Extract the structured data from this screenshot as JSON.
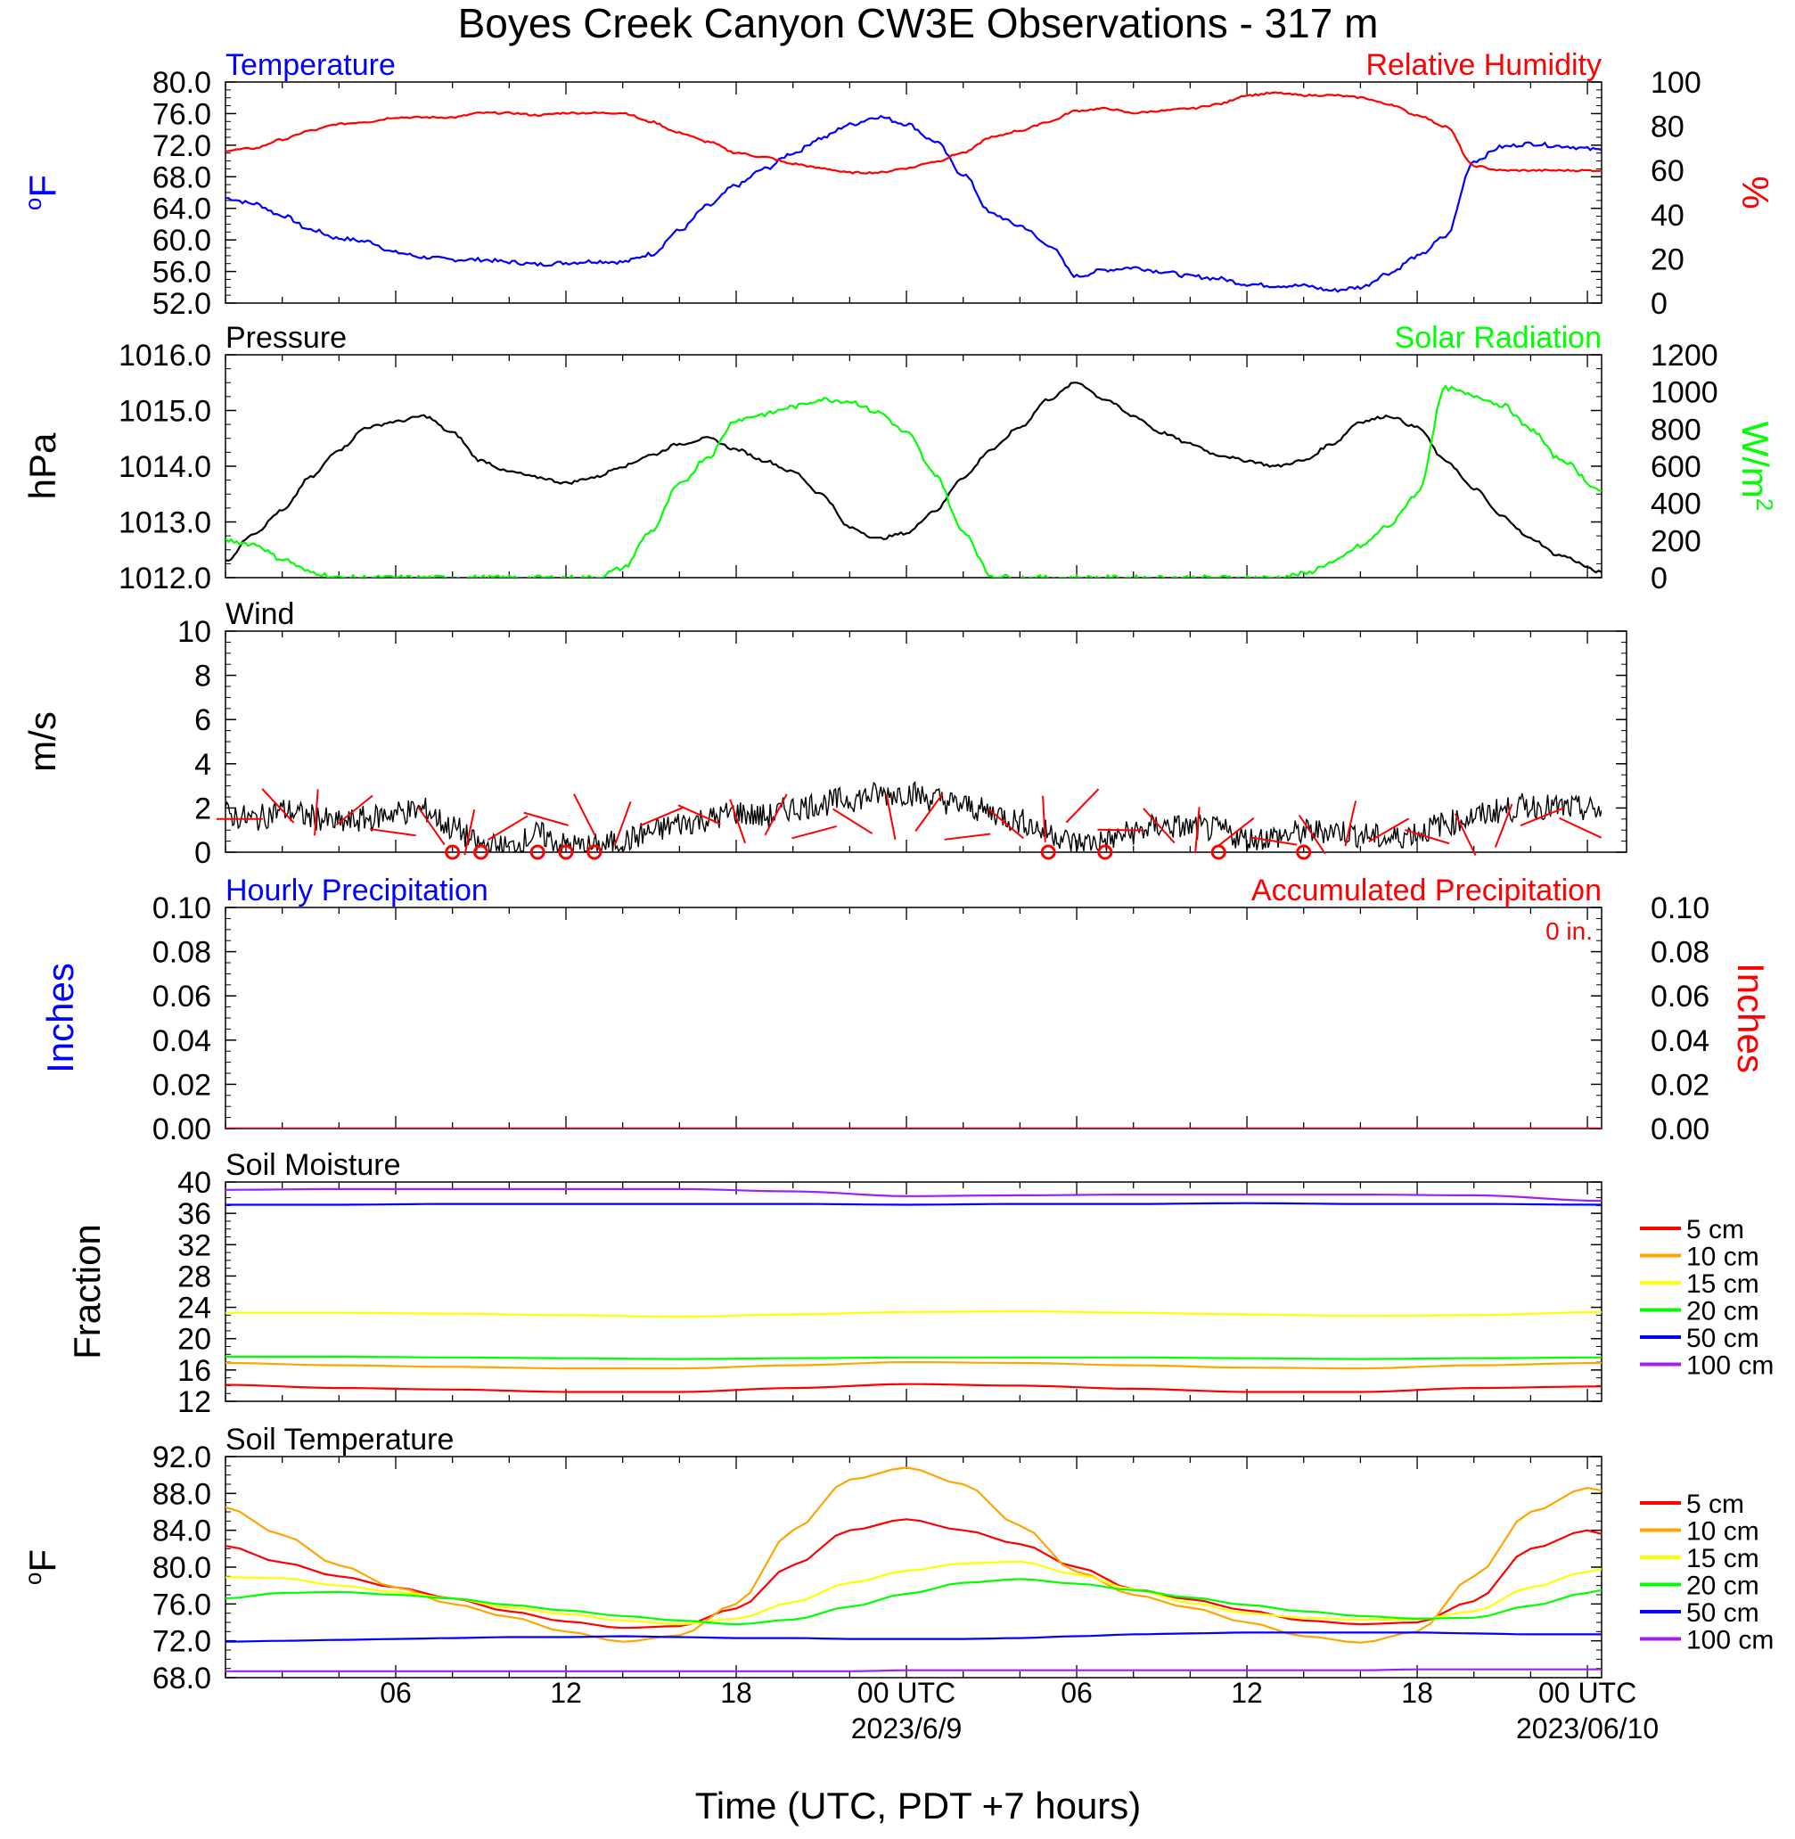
{
  "title": "Boyes Creek Canyon CW3E Observations - 317 m",
  "xaxis": {
    "title": "Time (UTC, PDT +7 hours)",
    "ticks": [
      {
        "h": 6,
        "label": "06"
      },
      {
        "h": 12,
        "label": "12"
      },
      {
        "h": 18,
        "label": "18"
      },
      {
        "h": 24,
        "label": "00 UTC",
        "sub": "2023/6/9"
      },
      {
        "h": 30,
        "label": "06"
      },
      {
        "h": 36,
        "label": "12"
      },
      {
        "h": 42,
        "label": "18"
      },
      {
        "h": 48,
        "label": "00 UTC",
        "sub": "2023/06/10"
      }
    ]
  },
  "legend": {
    "items": [
      {
        "label": "5 cm",
        "color": "#ff0000"
      },
      {
        "label": "10 cm",
        "color": "#ffa500"
      },
      {
        "label": "15 cm",
        "color": "#ffff00"
      },
      {
        "label": "20 cm",
        "color": "#00ff00"
      },
      {
        "label": "50 cm",
        "color": "#0000ff"
      },
      {
        "label": "100 cm",
        "color": "#a020f0"
      }
    ]
  },
  "chart_data": [
    {
      "id": "temp_rh",
      "type": "line",
      "left_title": "Temperature",
      "left_title_color": "#0000ff",
      "right_title": "Relative Humidity",
      "right_title_color": "#ff0000",
      "ylabel_left": "oF",
      "ylabel_left_color": "#0000ff",
      "ylabel_right": "%",
      "ylabel_right_color": "#ff0000",
      "ylim": [
        52,
        80
      ],
      "yticks": [
        "52.0",
        "56.0",
        "60.0",
        "64.0",
        "68.0",
        "72.0",
        "76.0",
        "80.0"
      ],
      "ylim_right": [
        0,
        100
      ],
      "yticks_right": [
        "0",
        "20",
        "40",
        "60",
        "80",
        "100"
      ],
      "x_hours": [
        0,
        1,
        2,
        3,
        4,
        5,
        6,
        7,
        8,
        9,
        10,
        11,
        12,
        13,
        14,
        15,
        16,
        17,
        18,
        19,
        20,
        21,
        22,
        23,
        24,
        25,
        26,
        27,
        28,
        29,
        30,
        31,
        32,
        33,
        34,
        35,
        36,
        37,
        38,
        39,
        40,
        41,
        42,
        43,
        44,
        45,
        46,
        47,
        48.5
      ],
      "series": [
        {
          "axis": "left",
          "color": "#0000ff",
          "values": [
            65.3,
            64.6,
            63.1,
            61.3,
            60.2,
            59.8,
            58.4,
            57.8,
            57.5,
            57.5,
            57.2,
            56.9,
            57.1,
            57.3,
            57.2,
            58.2,
            61.2,
            64.3,
            66.9,
            69.0,
            71.0,
            72.9,
            74.6,
            75.6,
            74.7,
            72.5,
            68.3,
            63.3,
            61.8,
            59.4,
            55.4,
            56.2,
            56.5,
            56.0,
            55.4,
            55.1,
            54.4,
            54.2,
            54.2,
            53.6,
            54.0,
            55.8,
            57.9,
            60.4,
            70.0,
            71.8,
            72.2,
            71.9,
            71.4
          ]
        },
        {
          "axis": "right",
          "color": "#ff0000",
          "values": [
            69,
            70,
            74,
            78,
            81,
            82,
            84,
            84,
            84,
            86,
            86,
            85,
            86,
            86,
            86,
            82,
            77,
            73,
            68,
            66,
            63,
            61,
            59,
            59,
            61,
            64,
            68,
            75,
            78,
            82,
            87,
            88,
            86,
            87,
            88,
            90,
            94,
            95,
            94,
            94,
            93,
            90,
            85,
            80,
            62,
            60,
            60,
            60,
            60
          ]
        }
      ]
    },
    {
      "id": "pres_solar",
      "type": "line",
      "left_title": "Pressure",
      "left_title_color": "#000000",
      "right_title": "Solar Radiation",
      "right_title_color": "#00ff00",
      "ylabel_left": "hPa",
      "ylabel_left_color": "#000000",
      "ylabel_right": "W/m2",
      "ylabel_right_color": "#00ff00",
      "ylim": [
        1012,
        1016
      ],
      "yticks": [
        "1012.0",
        "1013.0",
        "1014.0",
        "1015.0",
        "1016.0"
      ],
      "ylim_right": [
        0,
        1200
      ],
      "yticks_right": [
        "0",
        "200",
        "400",
        "600",
        "800",
        "1000",
        "1200"
      ],
      "x_hours": [
        0,
        1,
        2,
        3,
        4,
        5,
        6,
        7,
        8,
        9,
        10,
        11,
        12,
        13,
        14,
        15,
        16,
        17,
        18,
        19,
        20,
        21,
        22,
        23,
        24,
        25,
        26,
        27,
        28,
        29,
        30,
        31,
        32,
        33,
        34,
        35,
        36,
        37,
        38,
        39,
        40,
        41,
        42,
        43,
        44,
        45,
        46,
        47,
        48.5
      ],
      "series": [
        {
          "axis": "left",
          "color": "#000000",
          "values": [
            1012.3,
            1012.8,
            1013.2,
            1013.8,
            1014.3,
            1014.7,
            1014.8,
            1014.9,
            1014.6,
            1014.1,
            1013.9,
            1013.8,
            1013.7,
            1013.8,
            1014.0,
            1014.2,
            1014.4,
            1014.5,
            1014.3,
            1014.1,
            1013.9,
            1013.5,
            1012.9,
            1012.7,
            1012.8,
            1013.2,
            1013.8,
            1014.3,
            1014.7,
            1015.2,
            1015.5,
            1015.2,
            1014.9,
            1014.6,
            1014.4,
            1014.2,
            1014.1,
            1014.0,
            1014.1,
            1014.4,
            1014.8,
            1014.9,
            1014.7,
            1014.1,
            1013.6,
            1013.1,
            1012.7,
            1012.4,
            1012.1
          ]
        },
        {
          "axis": "right",
          "color": "#00ff00",
          "values": [
            200,
            180,
            100,
            30,
            0,
            0,
            0,
            0,
            0,
            0,
            0,
            0,
            0,
            0,
            50,
            250,
            500,
            650,
            850,
            880,
            920,
            960,
            950,
            890,
            780,
            560,
            250,
            10,
            0,
            0,
            0,
            0,
            0,
            0,
            0,
            0,
            0,
            0,
            20,
            80,
            170,
            280,
            450,
            1020,
            980,
            930,
            800,
            640,
            470
          ]
        }
      ]
    },
    {
      "id": "wind",
      "type": "line",
      "left_title": "Wind",
      "left_title_color": "#000000",
      "ylabel_left": "m/s",
      "ylabel_left_color": "#000000",
      "ylim": [
        0,
        10
      ],
      "yticks": [
        "0",
        "2",
        "4",
        "6",
        "8",
        "10"
      ],
      "x_hours": [
        0,
        1,
        2,
        3,
        4,
        5,
        6,
        7,
        8,
        9,
        10,
        11,
        12,
        13,
        14,
        15,
        16,
        17,
        18,
        19,
        20,
        21,
        22,
        23,
        24,
        25,
        26,
        27,
        28,
        29,
        30,
        31,
        32,
        33,
        34,
        35,
        36,
        37,
        38,
        39,
        40,
        41,
        42,
        43,
        44,
        45,
        46,
        47,
        48.5
      ],
      "series": [
        {
          "axis": "left",
          "color": "#000000",
          "values": [
            1.7,
            1.5,
            1.9,
            1.6,
            1.3,
            1.5,
            1.8,
            1.9,
            1.1,
            0.3,
            0.2,
            0.8,
            0.3,
            0.2,
            0.5,
            0.9,
            1.3,
            1.5,
            1.8,
            1.6,
            2.0,
            2.2,
            2.4,
            2.6,
            2.7,
            2.4,
            2.1,
            1.8,
            1.4,
            0.9,
            0.4,
            0.5,
            0.9,
            1.2,
            1.1,
            1.0,
            0.6,
            0.7,
            0.9,
            1.0,
            0.8,
            0.6,
            0.9,
            1.3,
            1.6,
            1.9,
            2.1,
            2.0,
            1.9
          ]
        },
        {
          "axis": "left",
          "color": "#ff0000",
          "name": "wind direction barbs",
          "values": [
            1.5,
            2.1,
            1.8,
            1.9,
            0.9,
            1.2,
            0.9,
            1.1,
            1.5,
            1.7,
            1.3,
            1.6,
            1.7,
            1.4,
            1.7,
            0.9,
            1.4,
            1.6,
            1.8,
            0.7,
            1.3,
            1.5,
            2.1,
            1.0,
            1.2,
            1.0,
            0.9,
            0.5,
            0.8,
            1.3,
            1.0,
            0.7,
            0.8,
            1.2,
            1.6,
            1.1
          ]
        }
      ],
      "calm_markers_hours": [
        8,
        9,
        11,
        12,
        13,
        29,
        31,
        35,
        38
      ]
    },
    {
      "id": "precip",
      "type": "line",
      "left_title": "Hourly Precipitation",
      "left_title_color": "#0000ff",
      "right_title": "Accumulated Precipitation",
      "right_title_color": "#ff0000",
      "annotation": "0 in.",
      "ylabel_left": "Inches",
      "ylabel_left_color": "#0000ff",
      "ylabel_right": "Inches",
      "ylabel_right_color": "#ff0000",
      "ylim": [
        0,
        0.1
      ],
      "yticks": [
        "0.00",
        "0.02",
        "0.04",
        "0.06",
        "0.08",
        "0.10"
      ],
      "ylim_right": [
        0,
        0.1
      ],
      "yticks_right": [
        "0.00",
        "0.02",
        "0.04",
        "0.06",
        "0.08",
        "0.10"
      ],
      "x_hours": [
        0,
        48.5
      ],
      "series": [
        {
          "axis": "left",
          "color": "#0000ff",
          "values": [
            0,
            0
          ]
        },
        {
          "axis": "right",
          "color": "#ff0000",
          "values": [
            0,
            0
          ]
        }
      ]
    },
    {
      "id": "soil_moist",
      "type": "line",
      "left_title": "Soil Moisture",
      "left_title_color": "#000000",
      "ylabel_left": "Fraction",
      "ylabel_left_color": "#000000",
      "ylim": [
        12,
        40
      ],
      "yticks": [
        "12",
        "16",
        "20",
        "24",
        "28",
        "32",
        "36",
        "40"
      ],
      "x_hours": [
        0,
        4,
        8,
        12,
        16,
        20,
        24,
        28,
        32,
        36,
        40,
        44,
        48.5
      ],
      "series": [
        {
          "axis": "left",
          "color": "#ff0000",
          "name": "5 cm",
          "values": [
            14.1,
            13.7,
            13.5,
            13.2,
            13.2,
            13.7,
            14.2,
            14.0,
            13.6,
            13.2,
            13.2,
            13.7,
            13.9
          ]
        },
        {
          "axis": "left",
          "color": "#ffa500",
          "name": "10 cm",
          "values": [
            16.9,
            16.6,
            16.4,
            16.2,
            16.2,
            16.6,
            17.0,
            16.9,
            16.6,
            16.3,
            16.2,
            16.6,
            16.9
          ]
        },
        {
          "axis": "left",
          "color": "#ffff00",
          "name": "15 cm",
          "values": [
            23.3,
            23.3,
            23.2,
            23.0,
            22.8,
            23.1,
            23.4,
            23.5,
            23.3,
            23.1,
            22.9,
            23.0,
            23.4
          ]
        },
        {
          "axis": "left",
          "color": "#00ff00",
          "name": "20 cm",
          "values": [
            17.7,
            17.7,
            17.6,
            17.5,
            17.4,
            17.5,
            17.6,
            17.6,
            17.6,
            17.5,
            17.4,
            17.5,
            17.6
          ]
        },
        {
          "axis": "left",
          "color": "#0000ff",
          "name": "50 cm",
          "values": [
            37.1,
            37.1,
            37.2,
            37.2,
            37.2,
            37.2,
            37.1,
            37.2,
            37.2,
            37.3,
            37.2,
            37.2,
            37.1
          ]
        },
        {
          "axis": "left",
          "color": "#a020f0",
          "name": "100 cm",
          "values": [
            39.0,
            39.1,
            39.1,
            39.1,
            39.1,
            38.8,
            38.2,
            38.3,
            38.4,
            38.4,
            38.4,
            38.3,
            37.6
          ]
        }
      ]
    },
    {
      "id": "soil_temp",
      "type": "line",
      "left_title": "Soil Temperature",
      "left_title_color": "#000000",
      "ylabel_left": "oF",
      "ylabel_left_color": "#000000",
      "ylim": [
        68,
        92
      ],
      "yticks": [
        "68.0",
        "72.0",
        "76.0",
        "80.0",
        "84.0",
        "88.0",
        "92.0"
      ],
      "x_hours": [
        0,
        2,
        4,
        6,
        8,
        10,
        12,
        14,
        16,
        18,
        20,
        22,
        24,
        26,
        28,
        30,
        32,
        34,
        36,
        38,
        40,
        42,
        44,
        46,
        48,
        48.5
      ],
      "series": [
        {
          "axis": "left",
          "color": "#ff0000",
          "name": "5 cm",
          "values": [
            82.3,
            80.5,
            79.0,
            77.8,
            76.6,
            75.2,
            74.1,
            73.4,
            73.6,
            75.5,
            80.2,
            84.0,
            85.2,
            84.0,
            82.5,
            80.0,
            77.6,
            76.5,
            75.3,
            74.2,
            73.8,
            74.0,
            76.3,
            82.0,
            84.0,
            83.6
          ]
        },
        {
          "axis": "left",
          "color": "#ffa500",
          "name": "10 cm",
          "values": [
            86.5,
            83.5,
            80.2,
            77.8,
            76.0,
            74.6,
            73.0,
            71.9,
            72.6,
            76.0,
            84.0,
            89.5,
            90.8,
            89.0,
            84.5,
            79.5,
            77.0,
            75.6,
            74.0,
            72.5,
            71.8,
            73.0,
            79.0,
            86.0,
            88.6,
            88.3
          ]
        },
        {
          "axis": "left",
          "color": "#ffff00",
          "name": "15 cm",
          "values": [
            78.9,
            78.8,
            78.0,
            77.3,
            76.6,
            75.6,
            74.9,
            74.2,
            73.8,
            74.4,
            76.2,
            78.3,
            79.6,
            80.4,
            80.6,
            79.2,
            77.6,
            76.1,
            75.0,
            74.5,
            74.3,
            74.3,
            75.2,
            77.8,
            79.5,
            79.8
          ]
        },
        {
          "axis": "left",
          "color": "#00ff00",
          "name": "20 cm",
          "values": [
            76.6,
            77.2,
            77.3,
            77.0,
            76.6,
            75.9,
            75.3,
            74.7,
            74.2,
            73.8,
            74.3,
            75.7,
            77.1,
            78.3,
            78.7,
            78.2,
            77.5,
            76.7,
            75.9,
            75.2,
            74.7,
            74.4,
            74.5,
            75.8,
            77.2,
            77.5
          ]
        },
        {
          "axis": "left",
          "color": "#0000ff",
          "name": "50 cm",
          "values": [
            71.9,
            72.0,
            72.1,
            72.2,
            72.3,
            72.4,
            72.4,
            72.5,
            72.4,
            72.3,
            72.3,
            72.2,
            72.2,
            72.2,
            72.3,
            72.5,
            72.7,
            72.8,
            72.9,
            72.9,
            72.9,
            72.9,
            72.8,
            72.7,
            72.7,
            72.7
          ]
        },
        {
          "axis": "left",
          "color": "#a020f0",
          "name": "100 cm",
          "values": [
            68.7,
            68.7,
            68.7,
            68.7,
            68.7,
            68.7,
            68.7,
            68.7,
            68.7,
            68.7,
            68.7,
            68.7,
            68.8,
            68.8,
            68.8,
            68.8,
            68.8,
            68.8,
            68.8,
            68.8,
            68.8,
            68.9,
            68.9,
            68.9,
            68.9,
            68.9
          ]
        }
      ]
    }
  ]
}
